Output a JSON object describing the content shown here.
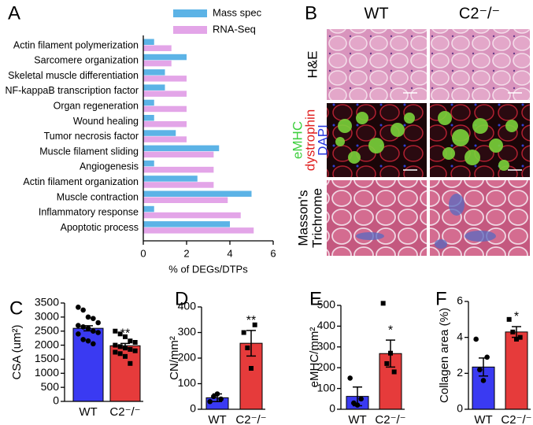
{
  "chart_data": [
    {
      "type": "bar",
      "orientation": "horizontal",
      "panel_label": "A",
      "xlabel": "% of DEGs/DTPs",
      "categories": [
        "Actin filament polymerization",
        "Sarcomere organization",
        "Skeletal muscle differentiation",
        "NF-kappaB transcription factor",
        "Organ regeneration",
        "Wound healing",
        "Tumor necrosis factor",
        "Muscle filament sliding",
        "Angiogenesis",
        "Actin filament organization",
        "Muscle contraction",
        "Inflammatory response",
        "Apoptotic process"
      ],
      "series": [
        {
          "name": "Mass spec",
          "color": "#5cb3e6",
          "values": [
            0.5,
            2.0,
            1.0,
            1.0,
            0.5,
            0.5,
            1.5,
            3.5,
            0.5,
            2.5,
            5.0,
            0.5,
            4.0
          ]
        },
        {
          "name": "RNA-Seq",
          "color": "#e3a5e8",
          "values": [
            1.3,
            1.3,
            2.0,
            2.0,
            2.0,
            2.0,
            2.0,
            3.25,
            3.25,
            3.25,
            3.9,
            4.5,
            5.1
          ]
        }
      ],
      "xlim": [
        0,
        6
      ],
      "xticks": [
        0,
        2,
        4,
        6
      ]
    },
    {
      "type": "bar",
      "panel_label": "C",
      "ylabel": "CSA (um²)",
      "categories": [
        "WT",
        "C2⁻/⁻"
      ],
      "values": [
        2600,
        1980
      ],
      "errors": [
        90,
        80
      ],
      "colors": [
        "#3a3af2",
        "#e63b3b"
      ],
      "points": [
        [
          3350,
          3250,
          3000,
          2950,
          2800,
          2700,
          2650,
          2600,
          2500,
          2450,
          2400,
          2200,
          2150,
          2050
        ],
        [
          2500,
          2400,
          2300,
          2150,
          2100,
          2000,
          1950,
          1900,
          1850,
          1800,
          1750,
          1700,
          1600,
          1350
        ]
      ],
      "annotation": "**",
      "ylim": [
        0,
        3500
      ],
      "yticks": [
        0,
        500,
        1000,
        1500,
        2000,
        2500,
        3000,
        3500
      ]
    },
    {
      "type": "bar",
      "panel_label": "D",
      "ylabel": "CN/mm²",
      "categories": [
        "WT",
        "C2⁻/⁻"
      ],
      "values": [
        45,
        258
      ],
      "errors": [
        15,
        50
      ],
      "colors": [
        "#3a3af2",
        "#e63b3b"
      ],
      "points": [
        [
          30,
          50,
          60,
          40
        ],
        [
          300,
          240,
          160,
          330
        ]
      ],
      "annotation": "**",
      "ylim": [
        0,
        400
      ],
      "yticks": [
        0,
        100,
        200,
        300,
        400
      ]
    },
    {
      "type": "bar",
      "panel_label": "E",
      "ylabel": "eMHC/mm²",
      "categories": [
        "WT",
        "C2⁻/⁻"
      ],
      "values": [
        62,
        268
      ],
      "errors": [
        45,
        65
      ],
      "colors": [
        "#3a3af2",
        "#e63b3b"
      ],
      "points": [
        [
          150,
          30,
          20,
          50
        ],
        [
          510,
          220,
          270,
          180
        ]
      ],
      "annotation": "*",
      "ylim": [
        0,
        500
      ],
      "yticks": [
        0,
        100,
        200,
        300,
        400,
        500
      ]
    },
    {
      "type": "bar",
      "panel_label": "F",
      "ylabel": "Collagen area (%)",
      "categories": [
        "WT",
        "C2⁻/⁻"
      ],
      "values": [
        2.35,
        4.3
      ],
      "errors": [
        0.5,
        0.3
      ],
      "colors": [
        "#3a3af2",
        "#e63b3b"
      ],
      "points": [
        [
          3.9,
          2.2,
          1.6,
          2.9
        ],
        [
          5.0,
          4.3,
          3.9,
          4.0
        ]
      ],
      "annotation": "*",
      "ylim": [
        0,
        6
      ],
      "yticks": [
        0,
        2,
        4,
        6
      ]
    }
  ],
  "histology": {
    "panel_label": "B",
    "columns": [
      "WT",
      "C2⁻/⁻"
    ],
    "rows": [
      "H&E",
      [
        "eMHC",
        "dystrophin",
        "DAPI"
      ],
      [
        "Masson's",
        "Trichrome"
      ]
    ]
  }
}
